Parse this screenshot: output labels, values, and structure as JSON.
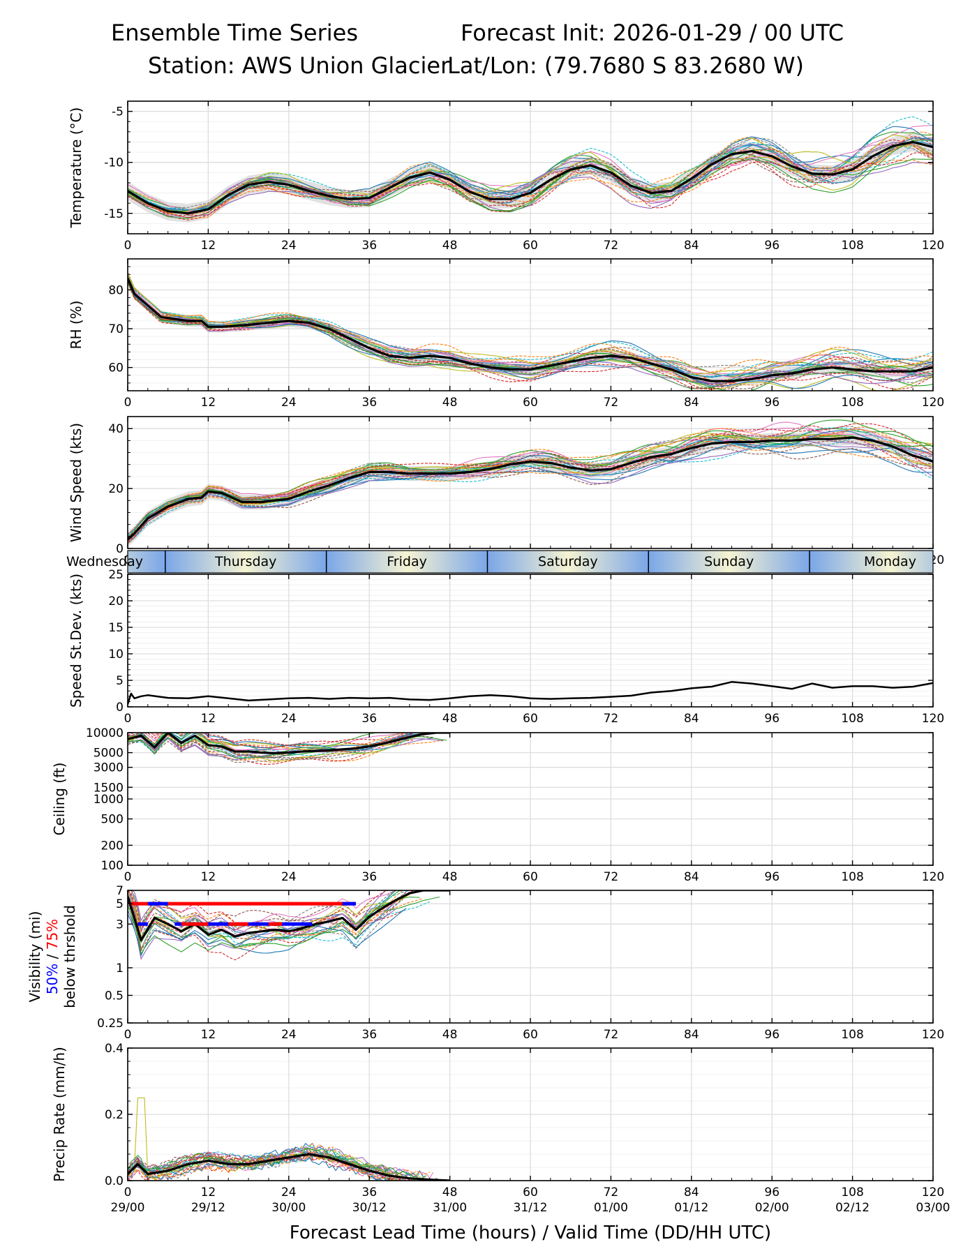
{
  "header": {
    "left_title": "Ensemble Time Series",
    "right_title": "Forecast Init: 2026-01-29 / 00 UTC",
    "station": "Station: AWS Union Glacier",
    "latlon": "Lat/Lon: (79.7680 S 83.2680 W)"
  },
  "colors": {
    "members": [
      "#1f77b4",
      "#ff7f0e",
      "#2ca02c",
      "#d62728",
      "#9467bd",
      "#8c564b",
      "#e377c2",
      "#7f7f7f",
      "#bcbd22",
      "#17becf"
    ],
    "mean": "#000000",
    "spread": "#c8c8c8",
    "p50": "#0000ff",
    "p75": "#ff0000",
    "day_blue": "#7aa6e8",
    "day_cream": "#f5f3d2"
  },
  "chart_data": {
    "type": "line",
    "x_axis": {
      "label": "Forecast Lead Time (hours) / Valid Time (DD/HH UTC)",
      "range": [
        0,
        120
      ],
      "ticks": [
        0,
        12,
        24,
        36,
        48,
        60,
        72,
        84,
        96,
        108,
        120
      ],
      "valid_time_labels": [
        "29/00",
        "29/12",
        "30/00",
        "30/12",
        "31/00",
        "31/12",
        "01/00",
        "01/12",
        "02/00",
        "02/12",
        "03/00"
      ]
    },
    "day_bar": {
      "days": [
        "Wednesday",
        "Thursday",
        "Friday",
        "Saturday",
        "Sunday",
        "Monday"
      ],
      "day_starts_hours": [
        5.6,
        29.6,
        53.6,
        77.6,
        101.6
      ]
    },
    "panels": [
      {
        "id": "temperature",
        "ylabel": "Temperature (°C)",
        "ylim": [
          -17,
          -4
        ],
        "yticks": [
          -15,
          -10,
          -5
        ],
        "mean": {
          "x": [
            0,
            3,
            6,
            9,
            12,
            15,
            18,
            21,
            24,
            27,
            30,
            33,
            36,
            39,
            42,
            45,
            48,
            51,
            54,
            57,
            60,
            63,
            66,
            69,
            72,
            75,
            78,
            81,
            84,
            87,
            90,
            93,
            96,
            99,
            102,
            105,
            108,
            111,
            114,
            117,
            120
          ],
          "y": [
            -12.8,
            -14.0,
            -14.8,
            -15.0,
            -14.6,
            -13.2,
            -12.2,
            -11.9,
            -12.2,
            -12.8,
            -13.3,
            -13.6,
            -13.5,
            -12.5,
            -11.5,
            -11.0,
            -11.7,
            -12.9,
            -13.6,
            -13.6,
            -13.0,
            -11.7,
            -10.7,
            -10.3,
            -11.0,
            -12.3,
            -13.0,
            -12.8,
            -11.6,
            -10.2,
            -9.2,
            -8.9,
            -9.4,
            -10.4,
            -11.1,
            -11.2,
            -10.7,
            -9.4,
            -8.4,
            -8.0,
            -8.5
          ]
        },
        "spread": 0.9,
        "members": 24
      },
      {
        "id": "rh",
        "ylabel": "RH (%)",
        "ylim": [
          54,
          88
        ],
        "yticks": [
          60,
          70,
          80
        ],
        "mean": {
          "x": [
            0,
            1,
            3,
            5,
            7,
            9,
            11,
            12,
            14,
            18,
            24,
            27,
            30,
            33,
            36,
            39,
            42,
            45,
            48,
            51,
            54,
            57,
            60,
            63,
            66,
            69,
            72,
            75,
            78,
            81,
            84,
            87,
            90,
            93,
            96,
            99,
            102,
            105,
            108,
            111,
            114,
            117,
            120
          ],
          "y": [
            83,
            79,
            76,
            73,
            72.5,
            72,
            72,
            70.5,
            70.5,
            71,
            72,
            71.5,
            70,
            67.5,
            65,
            63,
            62.5,
            63,
            62.5,
            61,
            60,
            59.5,
            59.5,
            60.5,
            61.5,
            62.5,
            63,
            62.5,
            61,
            59.5,
            57.5,
            56.5,
            56.5,
            57,
            58,
            58.5,
            59.5,
            60,
            59.5,
            59,
            59,
            59,
            60
          ]
        },
        "spread": 1.5,
        "members": 24
      },
      {
        "id": "wind_speed",
        "ylabel": "Wind Speed (kts)",
        "ylim": [
          0,
          44
        ],
        "yticks": [
          0,
          20,
          40
        ],
        "mean": {
          "x": [
            0,
            1,
            3,
            6,
            9,
            11,
            12,
            14,
            17,
            20,
            24,
            27,
            30,
            33,
            36,
            39,
            42,
            45,
            48,
            51,
            54,
            57,
            60,
            63,
            66,
            69,
            72,
            75,
            78,
            81,
            84,
            87,
            90,
            93,
            96,
            99,
            102,
            105,
            108,
            111,
            114,
            117,
            120
          ],
          "y": [
            3,
            5,
            10,
            14,
            16.5,
            17,
            19,
            18.5,
            15.5,
            15.5,
            16.5,
            19,
            21,
            23.5,
            25.5,
            25.5,
            25,
            25,
            25,
            25.5,
            26.5,
            28,
            29,
            28.5,
            27,
            26,
            26.5,
            28.5,
            30.5,
            31.5,
            33.5,
            35,
            35.5,
            35.5,
            36,
            36,
            36.5,
            36.5,
            37,
            36,
            34,
            31,
            29
          ]
        },
        "spread": 2.5,
        "members": 24
      },
      {
        "id": "speed_stdev",
        "ylabel": "Speed St.Dev. (kts)",
        "ylim": [
          0,
          25
        ],
        "yticks": [
          0,
          5,
          10,
          15,
          20,
          25
        ],
        "mean": {
          "x": [
            0,
            0.5,
            1,
            2,
            3,
            6,
            9,
            12,
            15,
            18,
            21,
            24,
            27,
            30,
            33,
            36,
            39,
            42,
            45,
            48,
            51,
            54,
            57,
            60,
            63,
            66,
            69,
            72,
            75,
            78,
            81,
            84,
            87,
            90,
            93,
            96,
            99,
            102,
            105,
            108,
            111,
            114,
            117,
            120
          ],
          "y": [
            0.5,
            2.5,
            1.6,
            2.0,
            2.2,
            1.7,
            1.6,
            2.0,
            1.6,
            1.2,
            1.4,
            1.6,
            1.7,
            1.5,
            1.7,
            1.6,
            1.7,
            1.4,
            1.3,
            1.6,
            2.0,
            2.2,
            2.0,
            1.6,
            1.5,
            1.6,
            1.7,
            1.9,
            2.1,
            2.7,
            3.0,
            3.5,
            3.8,
            4.7,
            4.4,
            3.9,
            3.4,
            4.4,
            3.6,
            3.9,
            3.9,
            3.6,
            3.8,
            4.5
          ]
        }
      },
      {
        "id": "ceiling",
        "ylabel": "Ceiling (ft)",
        "scale": "log",
        "ylim": [
          100,
          10000
        ],
        "yticks": [
          100,
          200,
          500,
          1000,
          1500,
          3000,
          5000,
          10000
        ],
        "mean": {
          "x": [
            0,
            2,
            4,
            6,
            8,
            10,
            12,
            14,
            16,
            18,
            20,
            22,
            24,
            26,
            28,
            30,
            32,
            34,
            36,
            38,
            40,
            42,
            44,
            46,
            48
          ],
          "y": [
            8000,
            9000,
            6000,
            10000,
            7000,
            9000,
            6500,
            6200,
            5200,
            5200,
            5000,
            4900,
            5000,
            5200,
            5300,
            5400,
            5600,
            5800,
            6200,
            6800,
            7600,
            8600,
            9500,
            10000,
            10000
          ]
        },
        "members": 24
      },
      {
        "id": "visibility",
        "ylabel_line1": "Visibility (mi)",
        "ylabel_p50": "50%",
        "ylabel_sep": " / ",
        "ylabel_p75": "75%",
        "ylabel_line3": "below thrshold",
        "scale": "log",
        "ylim": [
          0.25,
          7
        ],
        "yticks": [
          0.25,
          0.5,
          1,
          3,
          5,
          7
        ],
        "ytick_labels": [
          "0.25",
          "0.5",
          "1",
          "3",
          "5",
          "7"
        ],
        "mean": {
          "x": [
            0,
            2,
            4,
            6,
            8,
            10,
            12,
            14,
            16,
            18,
            20,
            22,
            24,
            26,
            28,
            30,
            32,
            34,
            36,
            38,
            40,
            42,
            44,
            46,
            48
          ],
          "y": [
            6,
            2.0,
            3.5,
            3.0,
            2.5,
            3.0,
            2.3,
            2.6,
            2.2,
            2.4,
            2.5,
            2.6,
            2.5,
            2.7,
            3.0,
            3.2,
            3.5,
            2.6,
            3.6,
            4.5,
            5.5,
            6.5,
            7,
            7,
            7
          ]
        },
        "members": 24,
        "threshold_5mi": [
          {
            "x0": 0.5,
            "x1": 34,
            "color": "red"
          },
          {
            "x0": 3,
            "x1": 6,
            "color": "blue"
          },
          {
            "x0": 32,
            "x1": 34,
            "color": "blue"
          }
        ],
        "threshold_3mi": [
          {
            "x0": 1.5,
            "x1": 3,
            "color": "blue"
          },
          {
            "x0": 7,
            "x1": 27.5,
            "color": "blue"
          },
          {
            "x0": 8,
            "x1": 12,
            "color": "red"
          },
          {
            "x0": 15,
            "x1": 18,
            "color": "red"
          },
          {
            "x0": 21,
            "x1": 23,
            "color": "red"
          }
        ]
      },
      {
        "id": "precip",
        "ylabel": "Precip Rate (mm/h)",
        "ylim": [
          0,
          0.4
        ],
        "yticks": [
          0.0,
          0.2,
          0.4
        ],
        "ytick_labels": [
          "0.0",
          "0.2",
          "0.4"
        ],
        "mean": {
          "x": [
            0,
            1.5,
            3,
            6,
            9,
            12,
            15,
            18,
            21,
            24,
            27,
            30,
            33,
            36,
            39,
            42,
            45,
            48
          ],
          "y": [
            0.02,
            0.05,
            0.02,
            0.03,
            0.05,
            0.06,
            0.05,
            0.05,
            0.06,
            0.07,
            0.08,
            0.07,
            0.05,
            0.03,
            0.015,
            0.007,
            0.003,
            0.0
          ]
        },
        "members": 24
      }
    ]
  }
}
